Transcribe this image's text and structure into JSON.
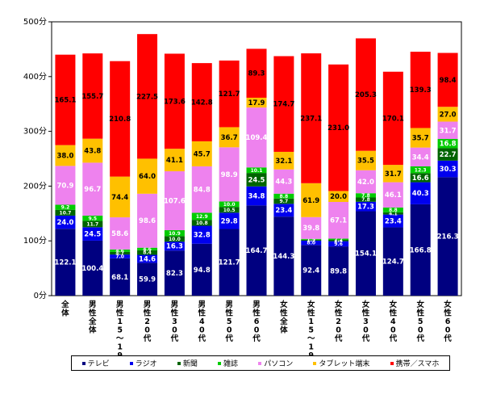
{
  "chart_data": {
    "type": "bar",
    "stacked": true,
    "title": "",
    "xlabel": "",
    "ylabel": "",
    "ylim": [
      0,
      500
    ],
    "yticks": [
      "0分",
      "100分",
      "200分",
      "300分",
      "400分",
      "500分"
    ],
    "grid": false,
    "legend_position": "bottom",
    "categories": [
      "全体",
      "男性全体",
      "男性15〜19才",
      "男性20代",
      "男性30代",
      "男性40代",
      "男性50代",
      "男性60代",
      "女性全体",
      "女性15〜19才",
      "女性20代",
      "女性30代",
      "女性40代",
      "女性50代",
      "女性60代"
    ],
    "series": [
      {
        "name": "テレビ",
        "color": "#000080",
        "labelColor": "#ffffff",
        "values": [
          122.1,
          100.4,
          68.1,
          59.9,
          82.3,
          94.8,
          121.7,
          164.7,
          144.3,
          92.4,
          89.8,
          154.1,
          124.7,
          166.8,
          216.3
        ]
      },
      {
        "name": "ラジオ",
        "color": "#0000ee",
        "labelColor": "#ffffff",
        "values": [
          24.0,
          24.5,
          7.0,
          14.6,
          16.3,
          32.8,
          29.8,
          34.8,
          23.4,
          8.0,
          9.6,
          17.3,
          23.4,
          40.3,
          30.3
        ]
      },
      {
        "name": "新聞",
        "color": "#006400",
        "labelColor": "#ffffff",
        "values": [
          10.7,
          11.7,
          4.7,
          8.4,
          10.0,
          10.8,
          10.5,
          24.5,
          9.7,
          1.7,
          2.4,
          7.8,
          4.1,
          16.6,
          22.7
        ]
      },
      {
        "name": "雑誌",
        "color": "#00cc00",
        "labelColor": "#ffffff",
        "values": [
          9.2,
          9.5,
          4.6,
          4.6,
          10.9,
          12.9,
          10.0,
          10.1,
          8.8,
          1.5,
          2.2,
          7.8,
          8.8,
          12.3,
          16.8
        ]
      },
      {
        "name": "パソコン",
        "color": "#ee82ee",
        "labelColor": "#ffffff",
        "values": [
          70.9,
          96.7,
          58.6,
          98.6,
          107.6,
          84.8,
          98.9,
          109.4,
          44.3,
          39.8,
          67.1,
          42.0,
          46.1,
          34.4,
          31.7
        ]
      },
      {
        "name": "タブレット端末",
        "color": "#ffc000",
        "labelColor": "#000000",
        "values": [
          38.0,
          43.8,
          74.4,
          64.0,
          41.1,
          45.7,
          36.7,
          17.9,
          32.1,
          61.9,
          20.0,
          35.5,
          31.7,
          35.7,
          27.0
        ]
      },
      {
        "name": "携帯／スマホ",
        "color": "#ff0000",
        "labelColor": "#000000",
        "values": [
          165.1,
          155.7,
          210.8,
          227.5,
          173.6,
          142.8,
          121.7,
          89.3,
          174.7,
          237.1,
          231.0,
          205.3,
          170.1,
          139.3,
          98.4
        ]
      }
    ]
  }
}
